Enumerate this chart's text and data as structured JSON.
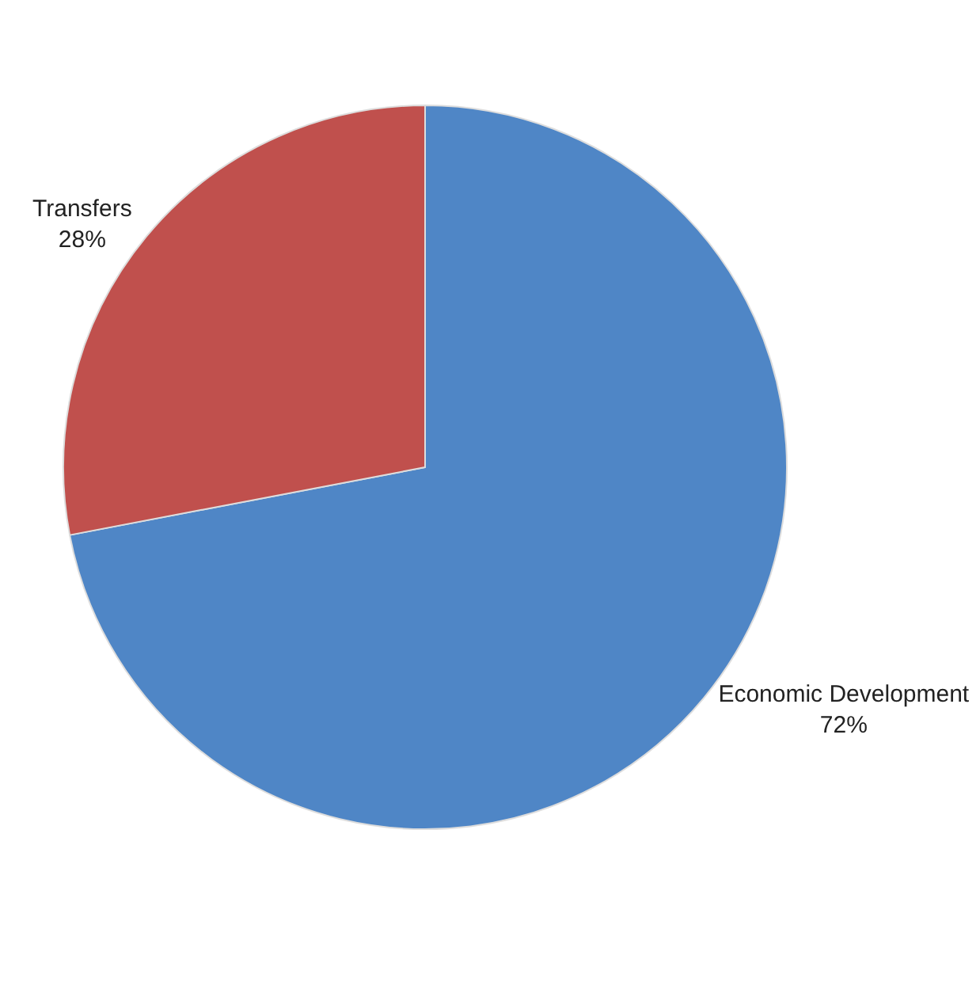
{
  "chart_data": {
    "type": "pie",
    "categories": [
      "Economic Development",
      "Transfers"
    ],
    "values": [
      72,
      28
    ],
    "value_labels": [
      "72%",
      "28%"
    ],
    "colors": [
      "#4f86c6",
      "#c0504d"
    ]
  }
}
